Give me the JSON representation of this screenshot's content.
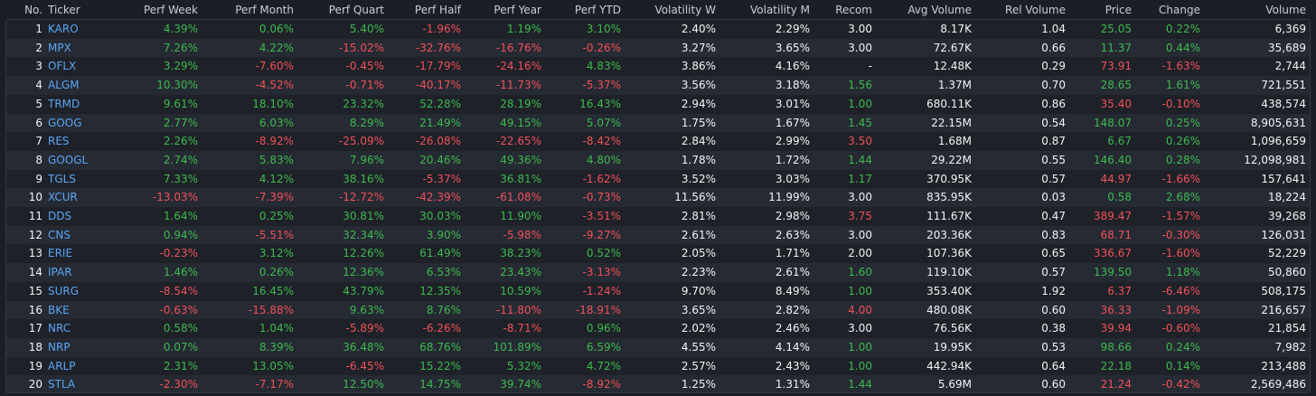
{
  "headers": [
    "No.",
    "Ticker",
    "Perf Week",
    "Perf Month",
    "Perf Quart",
    "Perf Half",
    "Perf Year",
    "Perf YTD",
    "Volatility W",
    "Volatility M",
    "Recom",
    "Avg Volume",
    "Rel Volume",
    "Price",
    "Change",
    "Volume"
  ],
  "colors": {
    "positive": "#3fb950",
    "negative": "#f0515a",
    "ticker": "#5ba6f5",
    "neutral": "#f2f3f5"
  },
  "rows": [
    {
      "no": "1",
      "ticker": "KARO",
      "perf_week": "4.39%",
      "perf_month": "0.06%",
      "perf_quart": "5.40%",
      "perf_half": "-1.96%",
      "perf_year": "1.19%",
      "perf_ytd": "3.10%",
      "vol_w": "2.40%",
      "vol_m": "2.29%",
      "recom": "3.00",
      "avg_volume": "8.17K",
      "rel_volume": "1.04",
      "price": "25.05",
      "change": "0.22%",
      "volume": "6,369"
    },
    {
      "no": "2",
      "ticker": "MPX",
      "perf_week": "7.26%",
      "perf_month": "4.22%",
      "perf_quart": "-15.02%",
      "perf_half": "-32.76%",
      "perf_year": "-16.76%",
      "perf_ytd": "-0.26%",
      "vol_w": "3.27%",
      "vol_m": "3.65%",
      "recom": "3.00",
      "avg_volume": "72.67K",
      "rel_volume": "0.66",
      "price": "11.37",
      "change": "0.44%",
      "volume": "35,689"
    },
    {
      "no": "3",
      "ticker": "OFLX",
      "perf_week": "3.29%",
      "perf_month": "-7.60%",
      "perf_quart": "-0.45%",
      "perf_half": "-17.79%",
      "perf_year": "-24.16%",
      "perf_ytd": "4.83%",
      "vol_w": "3.86%",
      "vol_m": "4.16%",
      "recom": "-",
      "avg_volume": "12.48K",
      "rel_volume": "0.29",
      "price": "73.91",
      "change": "-1.63%",
      "volume": "2,744"
    },
    {
      "no": "4",
      "ticker": "ALGM",
      "perf_week": "10.30%",
      "perf_month": "-4.52%",
      "perf_quart": "-0.71%",
      "perf_half": "-40.17%",
      "perf_year": "-11.73%",
      "perf_ytd": "-5.37%",
      "vol_w": "3.56%",
      "vol_m": "3.18%",
      "recom": "1.56",
      "avg_volume": "1.37M",
      "rel_volume": "0.70",
      "price": "28.65",
      "change": "1.61%",
      "volume": "721,551"
    },
    {
      "no": "5",
      "ticker": "TRMD",
      "perf_week": "9.61%",
      "perf_month": "18.10%",
      "perf_quart": "23.32%",
      "perf_half": "52.28%",
      "perf_year": "28.19%",
      "perf_ytd": "16.43%",
      "vol_w": "2.94%",
      "vol_m": "3.01%",
      "recom": "1.00",
      "avg_volume": "680.11K",
      "rel_volume": "0.86",
      "price": "35.40",
      "change": "-0.10%",
      "volume": "438,574"
    },
    {
      "no": "6",
      "ticker": "GOOG",
      "perf_week": "2.77%",
      "perf_month": "6.03%",
      "perf_quart": "8.29%",
      "perf_half": "21.49%",
      "perf_year": "49.15%",
      "perf_ytd": "5.07%",
      "vol_w": "1.75%",
      "vol_m": "1.67%",
      "recom": "1.45",
      "avg_volume": "22.15M",
      "rel_volume": "0.54",
      "price": "148.07",
      "change": "0.25%",
      "volume": "8,905,631"
    },
    {
      "no": "7",
      "ticker": "RES",
      "perf_week": "2.26%",
      "perf_month": "-8.92%",
      "perf_quart": "-25.09%",
      "perf_half": "-26.08%",
      "perf_year": "-22.65%",
      "perf_ytd": "-8.42%",
      "vol_w": "2.84%",
      "vol_m": "2.99%",
      "recom": "3.50",
      "avg_volume": "1.68M",
      "rel_volume": "0.87",
      "price": "6.67",
      "change": "0.26%",
      "volume": "1,096,659"
    },
    {
      "no": "8",
      "ticker": "GOOGL",
      "perf_week": "2.74%",
      "perf_month": "5.83%",
      "perf_quart": "7.96%",
      "perf_half": "20.46%",
      "perf_year": "49.36%",
      "perf_ytd": "4.80%",
      "vol_w": "1.78%",
      "vol_m": "1.72%",
      "recom": "1.44",
      "avg_volume": "29.22M",
      "rel_volume": "0.55",
      "price": "146.40",
      "change": "0.28%",
      "volume": "12,098,981"
    },
    {
      "no": "9",
      "ticker": "TGLS",
      "perf_week": "7.33%",
      "perf_month": "4.12%",
      "perf_quart": "38.16%",
      "perf_half": "-5.37%",
      "perf_year": "36.81%",
      "perf_ytd": "-1.62%",
      "vol_w": "3.52%",
      "vol_m": "3.03%",
      "recom": "1.17",
      "avg_volume": "370.95K",
      "rel_volume": "0.57",
      "price": "44.97",
      "change": "-1.66%",
      "volume": "157,641"
    },
    {
      "no": "10",
      "ticker": "XCUR",
      "perf_week": "-13.03%",
      "perf_month": "-7.39%",
      "perf_quart": "-12.72%",
      "perf_half": "-42.39%",
      "perf_year": "-61.08%",
      "perf_ytd": "-0.73%",
      "vol_w": "11.56%",
      "vol_m": "11.99%",
      "recom": "3.00",
      "avg_volume": "835.95K",
      "rel_volume": "0.03",
      "price": "0.58",
      "change": "2.68%",
      "volume": "18,224"
    },
    {
      "no": "11",
      "ticker": "DDS",
      "perf_week": "1.64%",
      "perf_month": "0.25%",
      "perf_quart": "30.81%",
      "perf_half": "30.03%",
      "perf_year": "11.90%",
      "perf_ytd": "-3.51%",
      "vol_w": "2.81%",
      "vol_m": "2.98%",
      "recom": "3.75",
      "avg_volume": "111.67K",
      "rel_volume": "0.47",
      "price": "389.47",
      "change": "-1.57%",
      "volume": "39,268"
    },
    {
      "no": "12",
      "ticker": "CNS",
      "perf_week": "0.94%",
      "perf_month": "-5.51%",
      "perf_quart": "32.34%",
      "perf_half": "3.90%",
      "perf_year": "-5.98%",
      "perf_ytd": "-9.27%",
      "vol_w": "2.61%",
      "vol_m": "2.63%",
      "recom": "3.00",
      "avg_volume": "203.36K",
      "rel_volume": "0.83",
      "price": "68.71",
      "change": "-0.30%",
      "volume": "126,031"
    },
    {
      "no": "13",
      "ticker": "ERIE",
      "perf_week": "-0.23%",
      "perf_month": "3.12%",
      "perf_quart": "12.26%",
      "perf_half": "61.49%",
      "perf_year": "38.23%",
      "perf_ytd": "0.52%",
      "vol_w": "2.05%",
      "vol_m": "1.71%",
      "recom": "2.00",
      "avg_volume": "107.36K",
      "rel_volume": "0.65",
      "price": "336.67",
      "change": "-1.60%",
      "volume": "52,229"
    },
    {
      "no": "14",
      "ticker": "IPAR",
      "perf_week": "1.46%",
      "perf_month": "0.26%",
      "perf_quart": "12.36%",
      "perf_half": "6.53%",
      "perf_year": "23.43%",
      "perf_ytd": "-3.13%",
      "vol_w": "2.23%",
      "vol_m": "2.61%",
      "recom": "1.60",
      "avg_volume": "119.10K",
      "rel_volume": "0.57",
      "price": "139.50",
      "change": "1.18%",
      "volume": "50,860"
    },
    {
      "no": "15",
      "ticker": "SURG",
      "perf_week": "-8.54%",
      "perf_month": "16.45%",
      "perf_quart": "43.79%",
      "perf_half": "12.35%",
      "perf_year": "10.59%",
      "perf_ytd": "-1.24%",
      "vol_w": "9.70%",
      "vol_m": "8.49%",
      "recom": "1.00",
      "avg_volume": "353.40K",
      "rel_volume": "1.92",
      "price": "6.37",
      "change": "-6.46%",
      "volume": "508,175"
    },
    {
      "no": "16",
      "ticker": "BKE",
      "perf_week": "-0.63%",
      "perf_month": "-15.88%",
      "perf_quart": "9.63%",
      "perf_half": "8.76%",
      "perf_year": "-11.80%",
      "perf_ytd": "-18.91%",
      "vol_w": "3.65%",
      "vol_m": "2.82%",
      "recom": "4.00",
      "avg_volume": "480.08K",
      "rel_volume": "0.60",
      "price": "36.33",
      "change": "-1.09%",
      "volume": "216,657"
    },
    {
      "no": "17",
      "ticker": "NRC",
      "perf_week": "0.58%",
      "perf_month": "1.04%",
      "perf_quart": "-5.89%",
      "perf_half": "-6.26%",
      "perf_year": "-8.71%",
      "perf_ytd": "0.96%",
      "vol_w": "2.02%",
      "vol_m": "2.46%",
      "recom": "3.00",
      "avg_volume": "76.56K",
      "rel_volume": "0.38",
      "price": "39.94",
      "change": "-0.60%",
      "volume": "21,854"
    },
    {
      "no": "18",
      "ticker": "NRP",
      "perf_week": "0.07%",
      "perf_month": "8.39%",
      "perf_quart": "36.48%",
      "perf_half": "68.76%",
      "perf_year": "101.89%",
      "perf_ytd": "6.59%",
      "vol_w": "4.55%",
      "vol_m": "4.14%",
      "recom": "1.00",
      "avg_volume": "19.95K",
      "rel_volume": "0.53",
      "price": "98.66",
      "change": "0.24%",
      "volume": "7,982"
    },
    {
      "no": "19",
      "ticker": "ARLP",
      "perf_week": "2.31%",
      "perf_month": "13.05%",
      "perf_quart": "-6.45%",
      "perf_half": "15.22%",
      "perf_year": "5.32%",
      "perf_ytd": "4.72%",
      "vol_w": "2.57%",
      "vol_m": "2.43%",
      "recom": "1.00",
      "avg_volume": "442.94K",
      "rel_volume": "0.64",
      "price": "22.18",
      "change": "0.14%",
      "volume": "213,488"
    },
    {
      "no": "20",
      "ticker": "STLA",
      "perf_week": "-2.30%",
      "perf_month": "-7.17%",
      "perf_quart": "12.50%",
      "perf_half": "14.75%",
      "perf_year": "39.74%",
      "perf_ytd": "-8.92%",
      "vol_w": "1.25%",
      "vol_m": "1.31%",
      "recom": "1.44",
      "avg_volume": "5.69M",
      "rel_volume": "0.60",
      "price": "21.24",
      "change": "-0.42%",
      "volume": "2,569,486"
    }
  ]
}
